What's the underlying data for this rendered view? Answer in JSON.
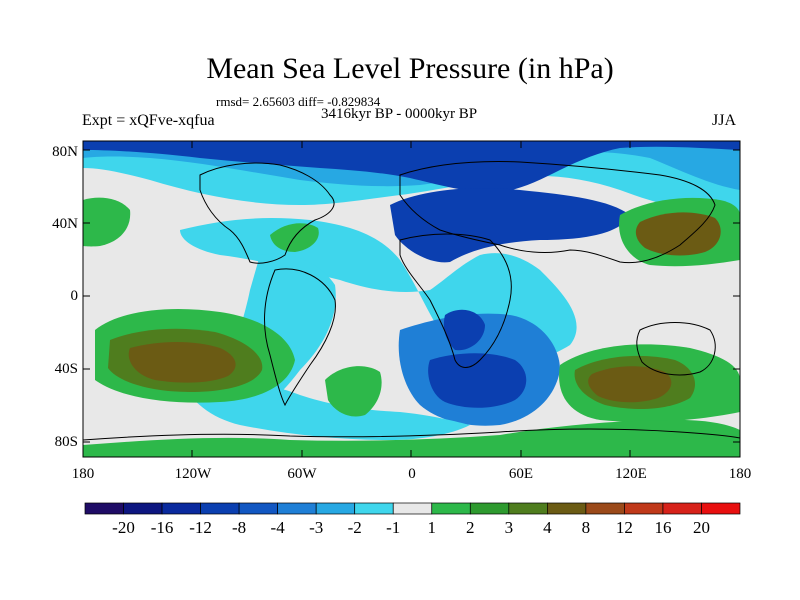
{
  "title": "Mean Sea Level Pressure (in hPa)",
  "stats_line": "rmsd= 2.65603 diff= -0.829834",
  "period": "3416kyr BP - 0000kyr BP",
  "experiment": "Expt = xQFve-xqfua",
  "season": "JJA",
  "lat_labels": [
    "80N",
    "40N",
    "0",
    "40S",
    "80S"
  ],
  "lon_labels": [
    "180",
    "120W",
    "60W",
    "0",
    "60E",
    "120E",
    "180"
  ],
  "colorbar": {
    "labels": [
      "-20",
      "-16",
      "-12",
      "-8",
      "-4",
      "-3",
      "-2",
      "-1",
      "1",
      "2",
      "3",
      "4",
      "8",
      "12",
      "16",
      "20"
    ],
    "colors": [
      "#1f0c66",
      "#0d1680",
      "#0a2a9e",
      "#0b3fb0",
      "#1257c2",
      "#1f7fd6",
      "#27a8e3",
      "#3fd6ec",
      "#e8e8e8",
      "#2db84a",
      "#2e9a2f",
      "#4f7d1e",
      "#6b5b14",
      "#9b4a1a",
      "#c0391a",
      "#d7221a",
      "#e80f0f"
    ]
  },
  "map_colors": {
    "neutral": "#e8e8e8",
    "cyan": "#3fd6ec",
    "light_blue": "#27a8e3",
    "mid_blue": "#1f7fd6",
    "deep_blue": "#0b3fb0",
    "light_green": "#2db84a",
    "green": "#2e9a2f",
    "olive": "#4f7d1e",
    "brown": "#6b5b14"
  }
}
